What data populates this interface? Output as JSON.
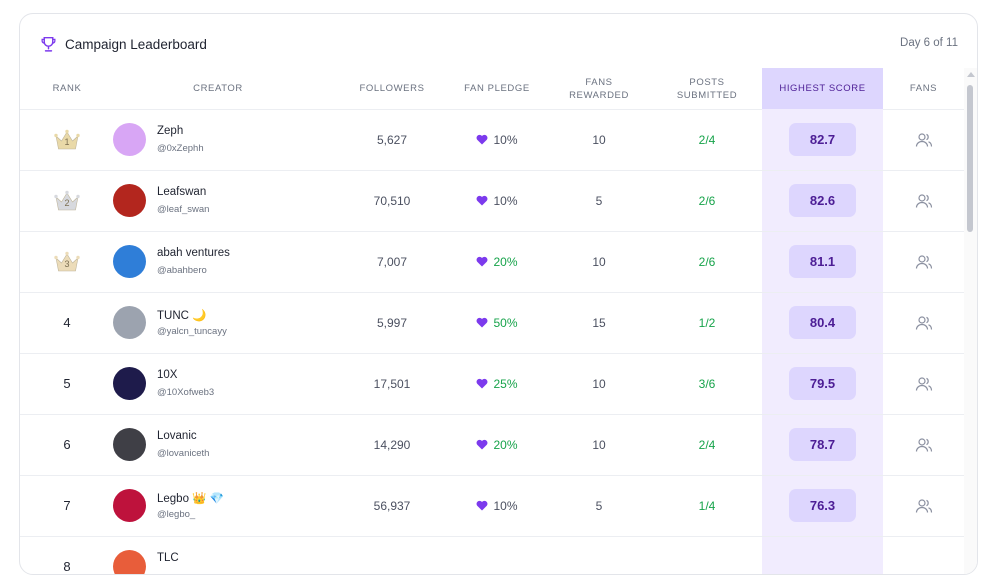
{
  "header": {
    "title": "Campaign Leaderboard",
    "day": "Day 6 of 11",
    "icon": "trophy-icon"
  },
  "columns": {
    "rank": "RANK",
    "creator": "CREATOR",
    "followers": "FOLLOWERS",
    "pledge": "FAN PLEDGE",
    "rewarded": "FANS REWARDED",
    "posts": "POSTS SUBMITTED",
    "score": "HIGHEST SCORE",
    "fans": "FANS"
  },
  "colors": {
    "accent": "#ddd6fe",
    "accent_text": "#4c1d95",
    "green": "#16a34a",
    "heart": "#7c3aed"
  },
  "rows": [
    {
      "rank": "1",
      "crown": true,
      "name": "Zeph",
      "badge": "",
      "handle": "@0xZephh",
      "followers": "5,627",
      "pledge": "10%",
      "pledge_green": false,
      "rewarded": "10",
      "posts": "2/4",
      "score": "82.7",
      "avatar_color": "#d8a6f5"
    },
    {
      "rank": "2",
      "crown": true,
      "name": "Leafswan",
      "badge": "",
      "handle": "@leaf_swan",
      "followers": "70,510",
      "pledge": "10%",
      "pledge_green": false,
      "rewarded": "5",
      "posts": "2/6",
      "score": "82.6",
      "avatar_color": "#b3261e"
    },
    {
      "rank": "3",
      "crown": true,
      "name": "abah ventures",
      "badge": "",
      "handle": "@abahbero",
      "followers": "7,007",
      "pledge": "20%",
      "pledge_green": true,
      "rewarded": "10",
      "posts": "2/6",
      "score": "81.1",
      "avatar_color": "#2f7ed8"
    },
    {
      "rank": "4",
      "crown": false,
      "name": "TUNC",
      "badge": "🌙",
      "handle": "@yalcn_tuncayy",
      "followers": "5,997",
      "pledge": "50%",
      "pledge_green": true,
      "rewarded": "15",
      "posts": "1/2",
      "score": "80.4",
      "avatar_color": "#9ca3af"
    },
    {
      "rank": "5",
      "crown": false,
      "name": "10X",
      "badge": "",
      "handle": "@10Xofweb3",
      "followers": "17,501",
      "pledge": "25%",
      "pledge_green": true,
      "rewarded": "10",
      "posts": "3/6",
      "score": "79.5",
      "avatar_color": "#1e1b4b"
    },
    {
      "rank": "6",
      "crown": false,
      "name": "Lovanic",
      "badge": "",
      "handle": "@lovaniceth",
      "followers": "14,290",
      "pledge": "20%",
      "pledge_green": true,
      "rewarded": "10",
      "posts": "2/4",
      "score": "78.7",
      "avatar_color": "#3f3f46"
    },
    {
      "rank": "7",
      "crown": false,
      "name": "Legbo",
      "badge": "👑 💎",
      "handle": "@legbo_",
      "followers": "56,937",
      "pledge": "10%",
      "pledge_green": false,
      "rewarded": "5",
      "posts": "1/4",
      "score": "76.3",
      "avatar_color": "#be123c"
    },
    {
      "rank": "8",
      "crown": false,
      "name": "TLC",
      "badge": "",
      "handle": "",
      "followers": "",
      "pledge": "",
      "pledge_green": false,
      "rewarded": "",
      "posts": "",
      "score": "",
      "avatar_color": "#e85d3a"
    }
  ]
}
